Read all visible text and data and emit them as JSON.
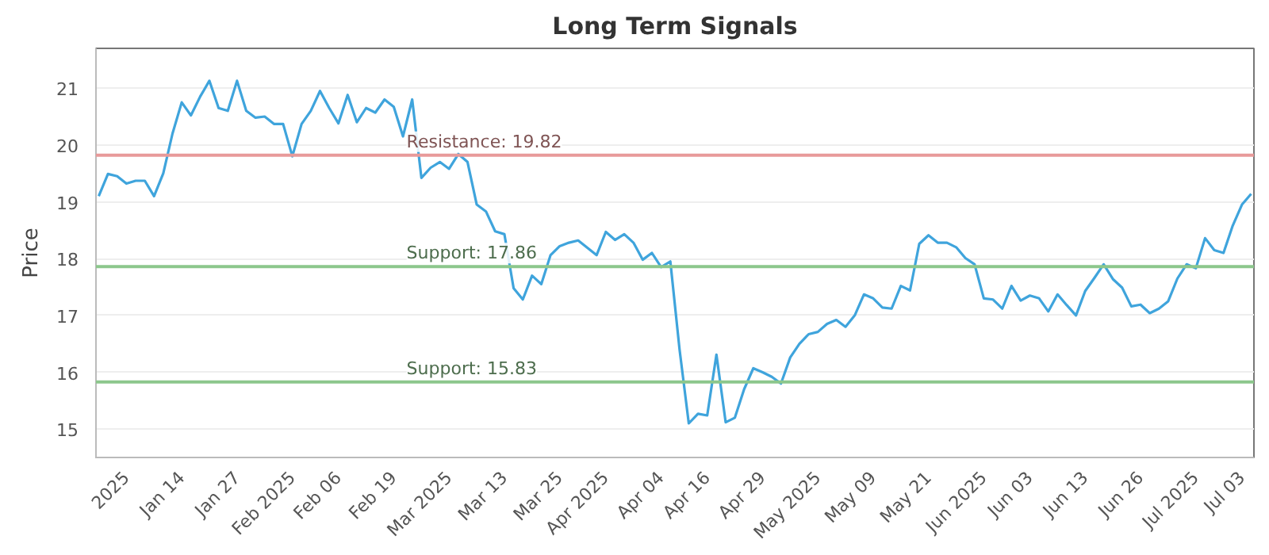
{
  "chart_data": {
    "type": "line",
    "title": "Long Term Signals",
    "ylabel": "Price",
    "categories": [
      null,
      null,
      null,
      "2025",
      null,
      null,
      null,
      null,
      null,
      "Jan 14",
      null,
      null,
      null,
      null,
      null,
      "Jan 27",
      null,
      null,
      null,
      null,
      null,
      "Feb 2025",
      null,
      null,
      null,
      null,
      "Feb 06",
      null,
      null,
      null,
      null,
      null,
      "Feb 19",
      null,
      null,
      null,
      null,
      null,
      "Mar 2025",
      null,
      null,
      null,
      null,
      null,
      "Mar 13",
      null,
      null,
      null,
      null,
      null,
      "Mar 25",
      null,
      null,
      null,
      null,
      "Apr 2025",
      null,
      null,
      null,
      null,
      null,
      "Apr 04",
      null,
      null,
      null,
      null,
      "Apr 16",
      null,
      null,
      null,
      null,
      null,
      "Apr 29",
      null,
      null,
      null,
      null,
      null,
      "May 2025",
      null,
      null,
      null,
      null,
      null,
      "May 09",
      null,
      null,
      null,
      null,
      null,
      "May 21",
      null,
      null,
      null,
      null,
      null,
      "Jun 2025",
      null,
      null,
      null,
      null,
      "Jun 03",
      null,
      null,
      null,
      null,
      null,
      "Jun 13",
      null,
      null,
      null,
      null,
      null,
      "Jun 26",
      null,
      null,
      null,
      null,
      null,
      "Jul 2025",
      null,
      null,
      null,
      null,
      "Jul 03",
      null
    ],
    "series": [
      {
        "color": "#3fa4dc",
        "values": [
          19.1,
          19.49,
          19.45,
          19.32,
          19.37,
          19.37,
          19.1,
          19.5,
          20.2,
          20.75,
          20.52,
          20.85,
          21.13,
          20.65,
          20.6,
          21.13,
          20.6,
          20.48,
          20.5,
          20.37,
          20.37,
          19.8,
          20.37,
          20.6,
          20.95,
          20.65,
          20.38,
          20.88,
          20.4,
          20.65,
          20.57,
          20.8,
          20.67,
          20.15,
          20.8,
          19.42,
          19.6,
          19.7,
          19.58,
          19.84,
          19.7,
          18.95,
          18.83,
          18.48,
          18.43,
          17.48,
          17.28,
          17.7,
          17.55,
          18.06,
          18.22,
          18.28,
          18.32,
          18.19,
          18.06,
          18.47,
          18.33,
          18.43,
          18.28,
          17.98,
          18.1,
          17.85,
          17.95,
          16.4,
          15.1,
          15.27,
          15.24,
          16.31,
          15.12,
          15.2,
          15.7,
          16.07,
          16.0,
          15.92,
          15.8,
          16.26,
          16.5,
          16.67,
          16.71,
          16.85,
          16.92,
          16.8,
          17.0,
          17.37,
          17.3,
          17.14,
          17.12,
          17.52,
          17.44,
          18.26,
          18.41,
          18.28,
          18.28,
          18.2,
          18.01,
          17.9,
          17.3,
          17.28,
          17.12,
          17.52,
          17.26,
          17.35,
          17.3,
          17.07,
          17.37,
          17.18,
          17.0,
          17.43,
          17.66,
          17.9,
          17.64,
          17.49,
          17.16,
          17.19,
          17.04,
          17.12,
          17.25,
          17.65,
          17.9,
          17.83,
          18.36,
          18.15,
          18.1,
          18.58,
          18.95,
          19.14
        ]
      }
    ],
    "ylim": [
      14.5,
      21.7
    ],
    "yticks": [
      15,
      16,
      17,
      18,
      19,
      20,
      21
    ],
    "grid": "y",
    "marker": "none",
    "line_style": "solid",
    "ref_lines": [
      {
        "axis": "y",
        "value": 19.82,
        "label": "Resistance: 19.82",
        "color": "#e89a9a"
      },
      {
        "axis": "y",
        "value": 17.86,
        "label": "Support: 17.86",
        "color": "#8cc78c"
      },
      {
        "axis": "y",
        "value": 15.83,
        "label": "Support: 15.83",
        "color": "#8cc78c"
      }
    ]
  }
}
